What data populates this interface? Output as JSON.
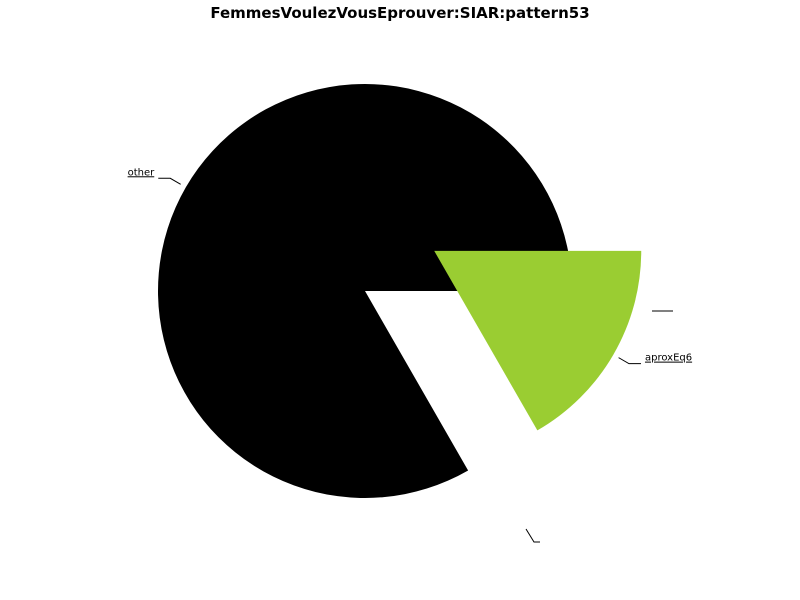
{
  "chart_data": {
    "type": "pie",
    "title": "FemmesVoulezVousEprouver:SIAR:pattern53",
    "slices": [
      {
        "label": "other",
        "value": 83.3,
        "color": "#000000",
        "exploded": false
      },
      {
        "label": "aproxEq6",
        "value": 16.7,
        "color": "#9acd32",
        "exploded": true
      },
      {
        "label": "",
        "value": 0,
        "color": "#000000",
        "exploded": false
      },
      {
        "label": "",
        "value": 0,
        "color": "#000000",
        "exploded": false
      }
    ]
  }
}
